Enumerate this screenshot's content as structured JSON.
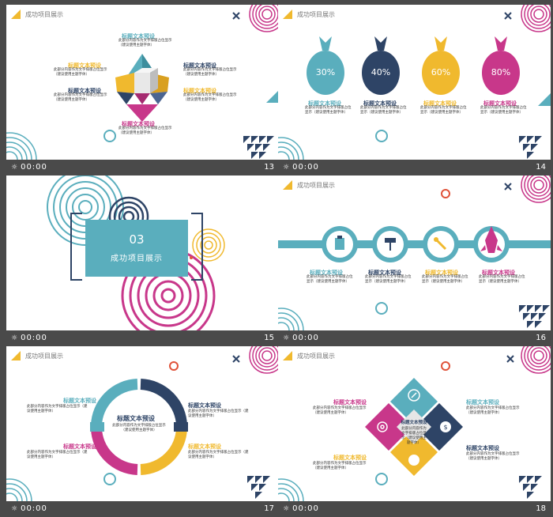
{
  "colors": {
    "teal": "#5aaebd",
    "navy": "#2e4466",
    "yellow": "#f0b92e",
    "pink": "#c8378a",
    "red": "#e0533a"
  },
  "section_title": "成功项目展示",
  "heading": "标题文本预设",
  "body_text": "此部分内容作为文字排版占位显示（建议使用主题字体）",
  "time": "00:00",
  "slides": [
    {
      "number": "13"
    },
    {
      "number": "14",
      "bags": [
        "30%",
        "40%",
        "60%",
        "80%"
      ]
    },
    {
      "number": "15",
      "section_number": "03",
      "section_name": "成功项目展示"
    },
    {
      "number": "16"
    },
    {
      "number": "17"
    },
    {
      "number": "18",
      "center_label": "标题文本预设"
    }
  ],
  "icons": {
    "play": "play-glyph",
    "close": "close-x-icon",
    "rocket": "rocket-icon",
    "wrench": "wrench-icon",
    "roller": "paint-roller-icon",
    "clipboard": "clipboard-icon",
    "dollar": "dollar-icon",
    "target": "target-icon"
  }
}
